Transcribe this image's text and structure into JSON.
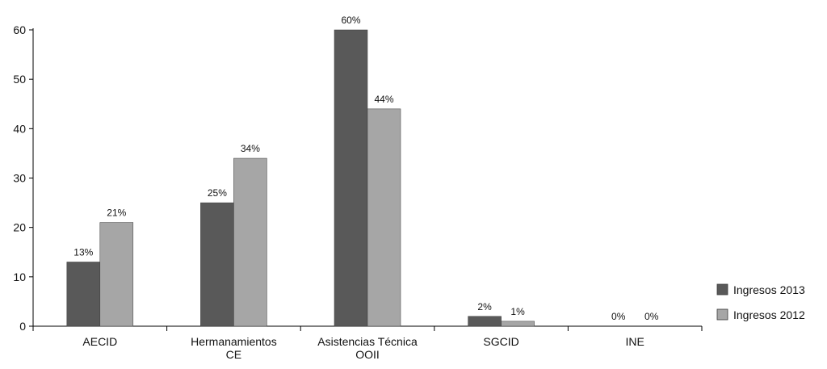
{
  "chart_data": {
    "type": "bar",
    "categories": [
      [
        "AECID"
      ],
      [
        "Hermanamientos",
        "CE"
      ],
      [
        "Asistencias Técnica",
        "OOII"
      ],
      [
        "SGCID"
      ],
      [
        "INE"
      ]
    ],
    "series": [
      {
        "name": "Ingresos 2013",
        "color": "#595959",
        "values": [
          13,
          25,
          60,
          2,
          0
        ],
        "labels": [
          "13%",
          "25%",
          "60%",
          "2%",
          "0%"
        ]
      },
      {
        "name": "Ingresos 2012",
        "color": "#a6a6a6",
        "values": [
          21,
          34,
          44,
          1,
          0
        ],
        "labels": [
          "21%",
          "34%",
          "44%",
          "1%",
          "0%"
        ]
      }
    ],
    "yticks": [
      0,
      10,
      20,
      30,
      40,
      50,
      60
    ],
    "ylim": [
      0,
      60
    ],
    "legend_position": "right-bottom",
    "grid": false
  }
}
